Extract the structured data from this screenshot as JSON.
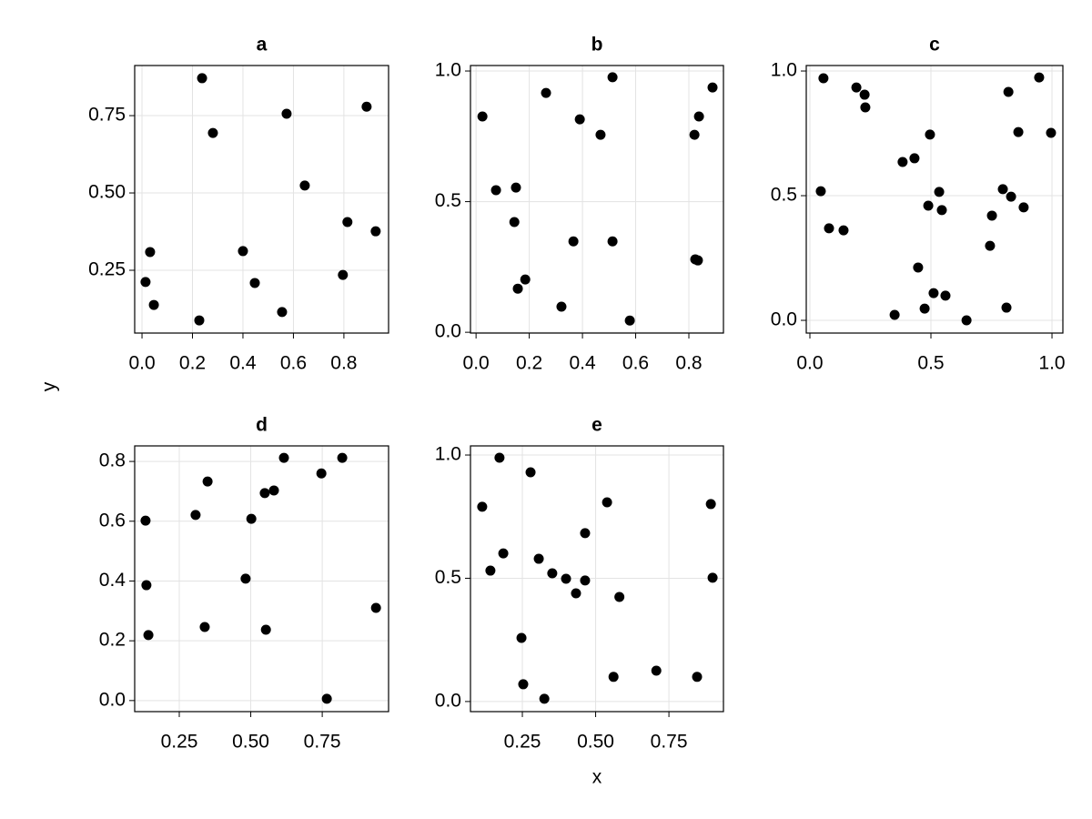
{
  "xlabel": "x",
  "ylabel": "y",
  "chart_data": [
    {
      "type": "scatter",
      "title": "a",
      "color": "#000000",
      "grid": true,
      "xlim": [
        -0.029,
        0.977
      ],
      "ylim": [
        0.047,
        0.912
      ],
      "xticks": [
        {
          "value": 0,
          "label": "0.0"
        },
        0.2,
        0.4,
        0.6,
        0.8
      ],
      "yticks": [
        0.25,
        {
          "value": 0.5,
          "label": "0.50"
        },
        0.75
      ],
      "x": [
        0.014,
        0.032,
        0.047,
        0.238,
        0.227,
        0.281,
        0.4,
        0.447,
        0.555,
        0.573,
        0.645,
        0.796,
        0.814,
        0.89,
        0.926
      ],
      "values": [
        0.212,
        0.309,
        0.138,
        0.871,
        0.088,
        0.694,
        0.312,
        0.209,
        0.115,
        0.756,
        0.524,
        0.235,
        0.406,
        0.779,
        0.376
      ]
    },
    {
      "type": "scatter",
      "title": "b",
      "color": "#000000",
      "grid": true,
      "xlim": [
        -0.021,
        0.93
      ],
      "ylim": [
        -0.003,
        1.021
      ],
      "xticks": [
        {
          "value": 0,
          "label": "0.0"
        },
        0.2,
        0.4,
        0.6,
        0.8
      ],
      "yticks": [
        {
          "value": 0,
          "label": "0.0"
        },
        0.5,
        {
          "value": 1,
          "label": "1.0"
        }
      ],
      "x": [
        0.024,
        0.075,
        0.15,
        0.144,
        0.157,
        0.185,
        0.263,
        0.321,
        0.366,
        0.39,
        0.468,
        0.513,
        0.513,
        0.578,
        0.821,
        0.824,
        0.834,
        0.838,
        0.889
      ],
      "values": [
        0.826,
        0.544,
        0.554,
        0.422,
        0.167,
        0.202,
        0.916,
        0.098,
        0.348,
        0.815,
        0.756,
        0.976,
        0.348,
        0.045,
        0.756,
        0.279,
        0.275,
        0.826,
        0.937
      ]
    },
    {
      "type": "scatter",
      "title": "c",
      "color": "#000000",
      "grid": true,
      "xlim": [
        -0.015,
        1.045
      ],
      "ylim": [
        -0.051,
        1.022
      ],
      "xticks": [
        {
          "value": 0,
          "label": "0.0"
        },
        0.5,
        {
          "value": 1,
          "label": "1.0"
        }
      ],
      "yticks": [
        {
          "value": 0,
          "label": "0.0"
        },
        0.5,
        {
          "value": 1,
          "label": "1.0"
        }
      ],
      "x": [
        0.056,
        0.045,
        0.079,
        0.139,
        0.192,
        0.226,
        0.229,
        0.35,
        0.383,
        0.432,
        0.447,
        0.474,
        0.489,
        0.496,
        0.511,
        0.534,
        0.545,
        0.56,
        0.647,
        0.744,
        0.752,
        0.797,
        0.812,
        0.82,
        0.831,
        0.861,
        0.883,
        0.947,
        0.996
      ],
      "values": [
        0.971,
        0.518,
        0.369,
        0.361,
        0.934,
        0.905,
        0.854,
        0.022,
        0.635,
        0.65,
        0.212,
        0.047,
        0.46,
        0.745,
        0.109,
        0.515,
        0.442,
        0.099,
        0.0,
        0.299,
        0.42,
        0.526,
        0.051,
        0.916,
        0.496,
        0.755,
        0.453,
        0.974,
        0.752
      ]
    },
    {
      "type": "scatter",
      "title": "d",
      "color": "#000000",
      "grid": true,
      "xlim": [
        0.094,
        0.982
      ],
      "ylim": [
        -0.037,
        0.852
      ],
      "xticks": [
        0.25,
        {
          "value": 0.5,
          "label": "0.50"
        },
        0.75
      ],
      "yticks": [
        {
          "value": 0,
          "label": "0.0"
        },
        0.2,
        0.4,
        0.6,
        0.8
      ],
      "x": [
        0.132,
        0.135,
        0.142,
        0.307,
        0.349,
        0.339,
        0.482,
        0.502,
        0.549,
        0.553,
        0.581,
        0.616,
        0.747,
        0.766,
        0.82,
        0.938
      ],
      "values": [
        0.602,
        0.386,
        0.219,
        0.621,
        0.733,
        0.246,
        0.408,
        0.608,
        0.694,
        0.237,
        0.703,
        0.812,
        0.76,
        0.006,
        0.812,
        0.31
      ]
    },
    {
      "type": "scatter",
      "title": "e",
      "color": "#000000",
      "grid": true,
      "xlim": [
        0.073,
        0.936
      ],
      "ylim": [
        -0.041,
        1.037
      ],
      "xticks": [
        0.25,
        {
          "value": 0.5,
          "label": "0.50"
        },
        0.75
      ],
      "yticks": [
        {
          "value": 0,
          "label": "0.0"
        },
        0.5,
        {
          "value": 1,
          "label": "1.0"
        }
      ],
      "x": [
        0.113,
        0.141,
        0.172,
        0.185,
        0.247,
        0.253,
        0.278,
        0.306,
        0.325,
        0.352,
        0.399,
        0.433,
        0.464,
        0.464,
        0.539,
        0.561,
        0.581,
        0.707,
        0.846,
        0.893,
        0.899
      ],
      "values": [
        0.79,
        0.531,
        0.989,
        0.601,
        0.258,
        0.07,
        0.93,
        0.579,
        0.011,
        0.52,
        0.498,
        0.439,
        0.491,
        0.683,
        0.808,
        0.1,
        0.424,
        0.125,
        0.1,
        0.801,
        0.502
      ]
    }
  ]
}
